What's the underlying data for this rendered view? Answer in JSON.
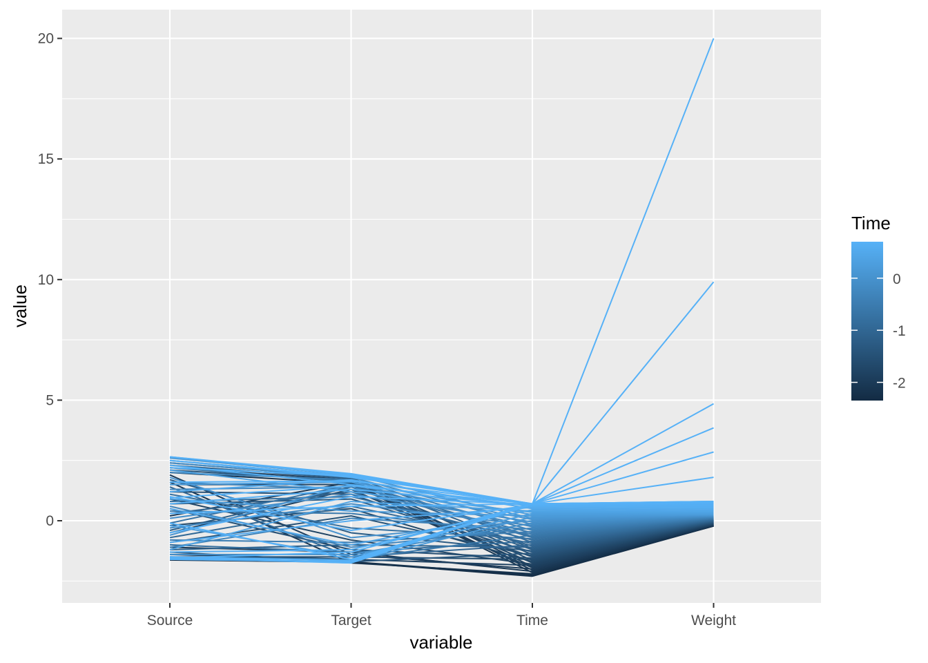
{
  "chart_data": {
    "type": "line",
    "subtype": "parallel-coordinates",
    "xlabel": "variable",
    "ylabel": "value",
    "categories": [
      "Source",
      "Target",
      "Time",
      "Weight"
    ],
    "ylim": [
      -3.4,
      21.2
    ],
    "yticks": [
      0,
      5,
      10,
      15,
      20
    ],
    "ytick_labels": [
      "0",
      "5",
      "10",
      "15",
      "20"
    ],
    "grid": true,
    "background": "#ebebeb",
    "legend": {
      "title": "Time",
      "placement": "right",
      "type": "colorbar",
      "range": [
        -2.35,
        0.7
      ],
      "ticks": [
        0,
        -1,
        -2
      ],
      "tick_labels": [
        "0",
        "-1",
        "-2"
      ],
      "low_color": "#132b43",
      "high_color": "#56b1f7"
    },
    "series": [
      {
        "values": [
          -1.63,
          -1.72,
          -2.3,
          -0.22
        ],
        "color_value": -2.3
      },
      {
        "values": [
          -1.6,
          -1.7,
          -2.25,
          -0.22
        ],
        "color_value": -2.25
      },
      {
        "values": [
          1.6,
          -1.75,
          -2.2,
          -0.21
        ],
        "color_value": -2.2
      },
      {
        "values": [
          2.0,
          1.55,
          -2.15,
          -0.2
        ],
        "color_value": -2.15
      },
      {
        "values": [
          -1.1,
          -1.3,
          -2.1,
          -0.2
        ],
        "color_value": -2.1
      },
      {
        "values": [
          0.2,
          1.6,
          -2.05,
          -0.19
        ],
        "color_value": -2.05
      },
      {
        "values": [
          1.9,
          -1.4,
          -2.0,
          -0.18
        ],
        "color_value": -2.0
      },
      {
        "values": [
          -0.5,
          1.3,
          -1.95,
          -0.17
        ],
        "color_value": -1.95
      },
      {
        "values": [
          2.2,
          1.7,
          -1.9,
          -0.16
        ],
        "color_value": -1.9
      },
      {
        "values": [
          -1.4,
          -1.6,
          -1.85,
          -0.15
        ],
        "color_value": -1.85
      },
      {
        "values": [
          0.9,
          -0.8,
          -1.8,
          -0.14
        ],
        "color_value": -1.8
      },
      {
        "values": [
          1.5,
          1.5,
          -1.75,
          -0.13
        ],
        "color_value": -1.75
      },
      {
        "values": [
          -0.2,
          0.5,
          -1.7,
          -0.12
        ],
        "color_value": -1.7
      },
      {
        "values": [
          2.4,
          1.8,
          -1.65,
          -0.11
        ],
        "color_value": -1.65
      },
      {
        "values": [
          -1.5,
          -1.5,
          -1.6,
          -0.1
        ],
        "color_value": -1.6
      },
      {
        "values": [
          0.5,
          -1.2,
          -1.55,
          -0.09
        ],
        "color_value": -1.55
      },
      {
        "values": [
          1.2,
          1.1,
          -1.5,
          -0.08
        ],
        "color_value": -1.5
      },
      {
        "values": [
          -0.9,
          0.2,
          -1.45,
          -0.07
        ],
        "color_value": -1.45
      },
      {
        "values": [
          2.1,
          1.65,
          -1.4,
          -0.06
        ],
        "color_value": -1.4
      },
      {
        "values": [
          -1.3,
          -1.7,
          -1.35,
          -0.05
        ],
        "color_value": -1.35
      },
      {
        "values": [
          0.7,
          0.9,
          -1.3,
          -0.04
        ],
        "color_value": -1.3
      },
      {
        "values": [
          1.7,
          -0.5,
          -1.25,
          -0.03
        ],
        "color_value": -1.25
      },
      {
        "values": [
          -0.4,
          1.4,
          -1.2,
          -0.02
        ],
        "color_value": -1.2
      },
      {
        "values": [
          2.3,
          1.75,
          -1.15,
          -0.01
        ],
        "color_value": -1.15
      },
      {
        "values": [
          -1.2,
          -1.0,
          -1.1,
          0.0
        ],
        "color_value": -1.1
      },
      {
        "values": [
          0.3,
          1.2,
          -1.05,
          0.01
        ],
        "color_value": -1.05
      },
      {
        "values": [
          1.4,
          -1.5,
          -1.0,
          0.02
        ],
        "color_value": -1.0
      },
      {
        "values": [
          -0.7,
          0.6,
          -0.95,
          0.03
        ],
        "color_value": -0.95
      },
      {
        "values": [
          2.5,
          1.85,
          -0.9,
          0.04
        ],
        "color_value": -0.9
      },
      {
        "values": [
          -1.0,
          -1.3,
          -0.85,
          0.05
        ],
        "color_value": -0.85
      },
      {
        "values": [
          0.8,
          1.0,
          -0.8,
          0.06
        ],
        "color_value": -0.8
      },
      {
        "values": [
          1.1,
          -0.3,
          -0.75,
          0.07
        ],
        "color_value": -0.75
      },
      {
        "values": [
          -0.1,
          1.5,
          -0.7,
          0.08
        ],
        "color_value": -0.7
      },
      {
        "values": [
          2.2,
          1.6,
          -0.65,
          0.09
        ],
        "color_value": -0.65
      },
      {
        "values": [
          -1.5,
          -1.6,
          -0.6,
          0.1
        ],
        "color_value": -0.6
      },
      {
        "values": [
          0.4,
          0.3,
          -0.55,
          0.11
        ],
        "color_value": -0.55
      },
      {
        "values": [
          1.6,
          1.3,
          -0.5,
          0.12
        ],
        "color_value": -0.5
      },
      {
        "values": [
          -0.8,
          -0.9,
          -0.45,
          0.13
        ],
        "color_value": -0.45
      },
      {
        "values": [
          2.0,
          1.7,
          -0.4,
          0.14
        ],
        "color_value": -0.4
      },
      {
        "values": [
          -1.1,
          0.1,
          -0.35,
          0.15
        ],
        "color_value": -0.35
      },
      {
        "values": [
          0.6,
          -1.1,
          -0.3,
          0.16
        ],
        "color_value": -0.3
      },
      {
        "values": [
          1.3,
          1.4,
          -0.25,
          0.17
        ],
        "color_value": -0.25
      },
      {
        "values": [
          -0.3,
          0.7,
          -0.2,
          0.18
        ],
        "color_value": -0.2
      },
      {
        "values": [
          2.4,
          1.8,
          -0.15,
          0.19
        ],
        "color_value": -0.15
      },
      {
        "values": [
          -1.4,
          -1.4,
          -0.1,
          0.2
        ],
        "color_value": -0.1
      },
      {
        "values": [
          0.1,
          1.1,
          -0.05,
          0.21
        ],
        "color_value": -0.05
      },
      {
        "values": [
          1.8,
          -0.7,
          0.0,
          0.22
        ],
        "color_value": 0.0
      },
      {
        "values": [
          -0.6,
          1.5,
          0.05,
          0.23
        ],
        "color_value": 0.05
      },
      {
        "values": [
          2.6,
          1.9,
          0.1,
          0.24
        ],
        "color_value": 0.1
      },
      {
        "values": [
          -1.6,
          -1.7,
          0.15,
          0.25
        ],
        "color_value": 0.15
      },
      {
        "values": [
          0.9,
          0.4,
          0.2,
          0.26
        ],
        "color_value": 0.2
      },
      {
        "values": [
          1.5,
          1.6,
          0.25,
          0.28
        ],
        "color_value": 0.25
      },
      {
        "values": [
          -0.2,
          -1.5,
          0.3,
          0.3
        ],
        "color_value": 0.3
      },
      {
        "values": [
          2.1,
          1.2,
          0.35,
          0.33
        ],
        "color_value": 0.35
      },
      {
        "values": [
          -1.2,
          0.8,
          0.4,
          0.36
        ],
        "color_value": 0.4
      },
      {
        "values": [
          0.5,
          -1.0,
          0.45,
          0.4
        ],
        "color_value": 0.45
      },
      {
        "values": [
          1.2,
          1.7,
          0.5,
          0.45
        ],
        "color_value": 0.5
      },
      {
        "values": [
          -0.9,
          0.0,
          0.55,
          0.5
        ],
        "color_value": 0.55
      },
      {
        "values": [
          2.3,
          1.5,
          0.6,
          0.55
        ],
        "color_value": 0.6
      },
      {
        "values": [
          -1.3,
          -1.2,
          0.62,
          0.6
        ],
        "color_value": 0.62
      },
      {
        "values": [
          0.7,
          1.3,
          0.64,
          0.65
        ],
        "color_value": 0.64
      },
      {
        "values": [
          1.0,
          -0.4,
          0.66,
          0.7
        ],
        "color_value": 0.66
      },
      {
        "values": [
          -0.5,
          1.0,
          0.68,
          0.74
        ],
        "color_value": 0.68
      },
      {
        "values": [
          2.5,
          1.85,
          0.7,
          0.77
        ],
        "color_value": 0.7
      },
      {
        "values": [
          -1.5,
          -1.75,
          0.7,
          0.78
        ],
        "color_value": 0.7
      },
      {
        "values": [
          0.3,
          0.6,
          0.7,
          0.78
        ],
        "color_value": 0.7
      },
      {
        "values": [
          1.6,
          1.65,
          0.7,
          0.79
        ],
        "color_value": 0.7
      },
      {
        "values": [
          -0.1,
          -1.6,
          0.7,
          0.79
        ],
        "color_value": 0.7
      },
      {
        "values": [
          2.65,
          1.9,
          0.7,
          0.8
        ],
        "color_value": 0.7
      },
      {
        "values": [
          -1.55,
          -1.3,
          0.7,
          0.8
        ],
        "color_value": 0.7
      },
      {
        "values": [
          0.95,
          1.45,
          0.7,
          0.8
        ],
        "color_value": 0.7
      },
      {
        "values": [
          2.65,
          1.95,
          0.7,
          1.8
        ],
        "color_value": 0.7
      },
      {
        "values": [
          -1.5,
          -1.65,
          0.7,
          2.85
        ],
        "color_value": 0.7
      },
      {
        "values": [
          2.2,
          1.85,
          0.7,
          3.85
        ],
        "color_value": 0.7
      },
      {
        "values": [
          -1.6,
          -1.7,
          0.7,
          4.85
        ],
        "color_value": 0.7
      },
      {
        "values": [
          2.5,
          1.8,
          0.7,
          9.9
        ],
        "color_value": 0.7
      },
      {
        "values": [
          -1.55,
          -1.75,
          0.7,
          20.0
        ],
        "color_value": 0.7
      }
    ]
  }
}
